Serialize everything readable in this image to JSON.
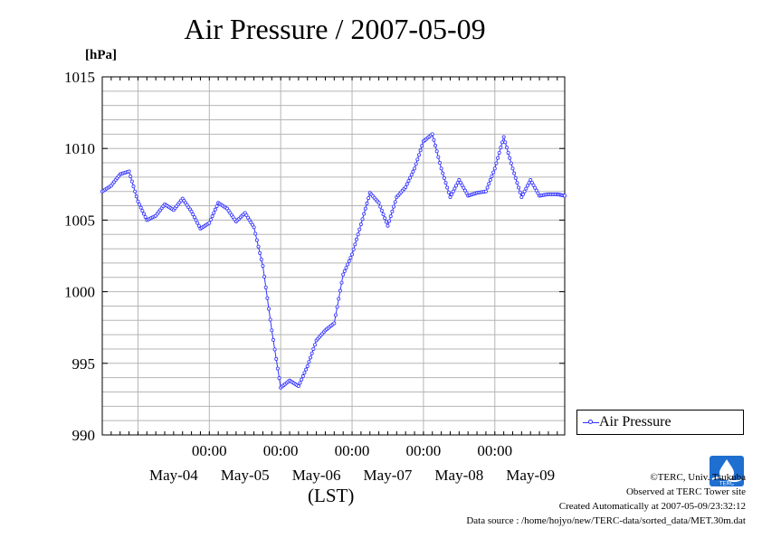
{
  "chart_data": {
    "type": "line",
    "title": "Air Pressure / 2007-05-09",
    "ylabel": "[hPa]",
    "xlabel": "(LST)",
    "ylim": [
      990,
      1015
    ],
    "yticks": [
      990,
      995,
      1000,
      1005,
      1010,
      1015
    ],
    "xlim_days": [
      "2007-05-03T12:00",
      "2007-05-09T23:30"
    ],
    "x_tick_time_label": "00:00",
    "x_day_labels": [
      "May-04",
      "May-05",
      "May-06",
      "May-07",
      "May-08",
      "May-09"
    ],
    "grid": true,
    "legend_position": "right-bottom",
    "series": [
      {
        "name": "Air Pressure",
        "color": "#3333ff",
        "marker": "open-circle",
        "x": [
          "05-03 12:00",
          "05-03 15:00",
          "05-03 18:00",
          "05-03 21:00",
          "05-04 00:00",
          "05-04 03:00",
          "05-04 06:00",
          "05-04 09:00",
          "05-04 12:00",
          "05-04 15:00",
          "05-04 18:00",
          "05-04 21:00",
          "05-05 00:00",
          "05-05 03:00",
          "05-05 06:00",
          "05-05 09:00",
          "05-05 12:00",
          "05-05 15:00",
          "05-05 18:00",
          "05-05 21:00",
          "05-06 00:00",
          "05-06 03:00",
          "05-06 06:00",
          "05-06 09:00",
          "05-06 12:00",
          "05-06 15:00",
          "05-06 18:00",
          "05-06 21:00",
          "05-07 00:00",
          "05-07 03:00",
          "05-07 06:00",
          "05-07 09:00",
          "05-07 12:00",
          "05-07 15:00",
          "05-07 18:00",
          "05-07 21:00",
          "05-08 00:00",
          "05-08 03:00",
          "05-08 06:00",
          "05-08 09:00",
          "05-08 12:00",
          "05-08 15:00",
          "05-08 18:00",
          "05-08 21:00",
          "05-09 00:00",
          "05-09 03:00",
          "05-09 06:00",
          "05-09 09:00",
          "05-09 12:00",
          "05-09 15:00",
          "05-09 18:00",
          "05-09 21:00",
          "05-09 23:30"
        ],
        "values": [
          1007.0,
          1007.4,
          1008.2,
          1008.4,
          1006.3,
          1005.0,
          1005.3,
          1006.1,
          1005.7,
          1006.5,
          1005.6,
          1004.4,
          1004.8,
          1006.2,
          1005.8,
          1004.9,
          1005.5,
          1004.5,
          1001.8,
          997.3,
          993.3,
          993.8,
          993.4,
          994.8,
          996.6,
          997.3,
          997.8,
          1001.2,
          1002.6,
          1004.7,
          1006.9,
          1006.2,
          1004.6,
          1006.6,
          1007.3,
          1008.6,
          1010.5,
          1011.0,
          1008.6,
          1006.6,
          1007.8,
          1006.7,
          1006.9,
          1007.0,
          1008.6,
          1010.8,
          1008.6,
          1006.6,
          1007.8,
          1006.7,
          1006.8,
          1006.8,
          1006.7
        ]
      }
    ]
  },
  "legend": {
    "label": "Air Pressure"
  },
  "credits": {
    "line1": "©TERC, Univ. Tsukuba",
    "line2": "Observed at TERC Tower site",
    "line3": "Created Automatically at 2007-05-09/23:32:12",
    "line4": "Data source : /home/hojyo/new/TERC-data/sorted_data/MET.30m.dat"
  },
  "logo": {
    "text": "TERC",
    "color": "#1f6fd1"
  }
}
